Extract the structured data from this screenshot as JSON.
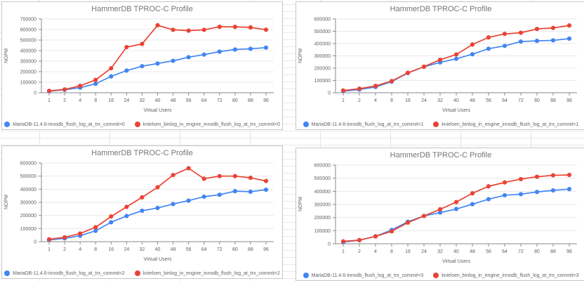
{
  "chart_data": [
    {
      "type": "line",
      "title": "HammerDB TPROC-C Profile",
      "xlabel": "Virtual Users",
      "ylabel": "NOPM",
      "categories": [
        "1",
        "2",
        "4",
        "8",
        "16",
        "24",
        "32",
        "40",
        "48",
        "56",
        "64",
        "72",
        "80",
        "88",
        "96"
      ],
      "ylim": [
        0,
        700000
      ],
      "ytick_step": 100000,
      "grid": true,
      "legend_position": "bottom",
      "series": [
        {
          "name": "MariaDB-11.4.6-innodb_flush_log_at_trx_commit=0",
          "color": "#4285f4",
          "values": [
            15000,
            28000,
            48000,
            85000,
            155000,
            210000,
            252000,
            277000,
            303000,
            337000,
            362000,
            390000,
            410000,
            417000,
            428000
          ]
        },
        {
          "name": "knielsen_binlog_in_engine_innodb_flush_log_at_trx_commit=0",
          "color": "#ea4335",
          "values": [
            18000,
            31000,
            65000,
            122000,
            232000,
            433000,
            463000,
            640000,
            597000,
            589000,
            597000,
            626000,
            625000,
            620000,
            598000
          ]
        }
      ]
    },
    {
      "type": "line",
      "title": "HammerDB TPROC-C Profile",
      "xlabel": "Virtual Users",
      "ylabel": "NOPM",
      "categories": [
        "1",
        "2",
        "4",
        "8",
        "16",
        "24",
        "32",
        "40",
        "48",
        "56",
        "64",
        "72",
        "80",
        "88",
        "96"
      ],
      "ylim": [
        0,
        600000
      ],
      "ytick_step": 100000,
      "grid": true,
      "legend_position": "bottom",
      "series": [
        {
          "name": "MariaDB-11.4.6-innodb_flush_log_at_trx_commit=1",
          "color": "#4285f4",
          "values": [
            13000,
            26000,
            47000,
            90000,
            160000,
            211000,
            247000,
            276000,
            313000,
            358000,
            381000,
            416000,
            422000,
            426000,
            440000
          ]
        },
        {
          "name": "knielsen_binlog_in_engine_innodb_flush_log_at_trx_commit=1",
          "color": "#ea4335",
          "values": [
            18000,
            33000,
            55000,
            95000,
            162000,
            212000,
            268000,
            311000,
            392000,
            450000,
            479000,
            488000,
            519000,
            527000,
            547000
          ]
        }
      ]
    },
    {
      "type": "line",
      "title": "HammerDB TPROC-C Profile",
      "xlabel": "Virtual Users",
      "ylabel": "NOPM",
      "categories": [
        "1",
        "2",
        "4",
        "8",
        "16",
        "24",
        "32",
        "40",
        "48",
        "56",
        "64",
        "72",
        "80",
        "88",
        "96"
      ],
      "ylim": [
        0,
        600000
      ],
      "ytick_step": 100000,
      "grid": true,
      "legend_position": "bottom",
      "series": [
        {
          "name": "MariaDB-11.4.6-innodb_flush_log_at_trx_commit=2",
          "color": "#4285f4",
          "values": [
            13000,
            25000,
            45000,
            83000,
            148000,
            196000,
            236000,
            257000,
            287000,
            313000,
            343000,
            358000,
            385000,
            381000,
            396000
          ]
        },
        {
          "name": "knielsen_binlog_in_engine_innodb_flush_log_at_trx_commit=2",
          "color": "#ea4335",
          "values": [
            18000,
            33000,
            62000,
            110000,
            192000,
            265000,
            338000,
            415000,
            508000,
            560000,
            480000,
            500000,
            500000,
            487000,
            463000
          ]
        }
      ]
    },
    {
      "type": "line",
      "title": "HammerDB TPROC-C Profile",
      "xlabel": "Virtual Users",
      "ylabel": "NOPM",
      "categories": [
        "1",
        "2",
        "4",
        "8",
        "16",
        "24",
        "32",
        "40",
        "48",
        "56",
        "64",
        "72",
        "80",
        "88",
        "96"
      ],
      "ylim": [
        0,
        600000
      ],
      "ytick_step": 100000,
      "grid": true,
      "legend_position": "bottom",
      "series": [
        {
          "name": "MariaDB-11.4.6-innodb_flush_log_at_trx_commit=3",
          "color": "#4285f4",
          "values": [
            13000,
            27000,
            57000,
            105000,
            168000,
            212000,
            238000,
            265000,
            302000,
            340000,
            370000,
            378000,
            395000,
            407000,
            417000
          ]
        },
        {
          "name": "knielsen_binlog_in_engine_innodb_flush_log_at_trx_commit=3",
          "color": "#ea4335",
          "values": [
            18000,
            28000,
            56000,
            95000,
            161000,
            212000,
            263000,
            318000,
            385000,
            438000,
            468000,
            493000,
            511000,
            522000,
            525000
          ]
        }
      ]
    }
  ]
}
